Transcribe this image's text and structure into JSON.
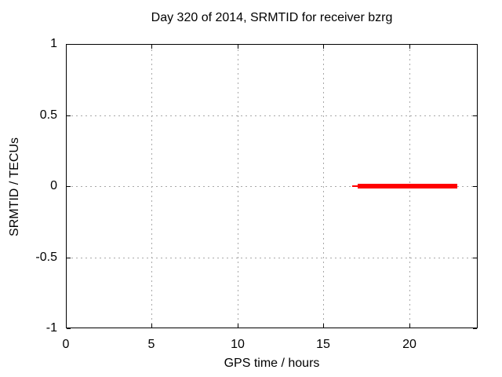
{
  "chart_data": {
    "type": "line",
    "title": "Day 320 of 2014, SRMTID for receiver bzrg",
    "xlabel": "GPS time / hours",
    "ylabel": "SRMTID / TECUs",
    "xlim": [
      0,
      24
    ],
    "ylim": [
      -1,
      1
    ],
    "grid": true,
    "legend": "none",
    "background_color": "#ffffff",
    "border_color": "#000000",
    "grid_color": "#a8a8a8",
    "x_ticks": [
      {
        "v": 0,
        "label": "0"
      },
      {
        "v": 5,
        "label": "5"
      },
      {
        "v": 10,
        "label": "10"
      },
      {
        "v": 15,
        "label": "15"
      },
      {
        "v": 20,
        "label": "20"
      }
    ],
    "y_ticks": [
      {
        "v": 1,
        "label": "1"
      },
      {
        "v": 0.5,
        "label": "0.5"
      },
      {
        "v": 0,
        "label": "0"
      },
      {
        "v": -0.5,
        "label": "-0.5"
      },
      {
        "v": -1,
        "label": "-1"
      }
    ],
    "series": [
      {
        "name": "SRMTID",
        "color": "#ff0000",
        "description": "constant segment at y = 0 from about 16.7 h to 22.8 h GPS time",
        "segments": [
          {
            "x1": 16.7,
            "x2": 17.0,
            "y": 0,
            "weight": "thin"
          },
          {
            "x1": 17.0,
            "x2": 22.8,
            "y": 0,
            "weight": "thick"
          }
        ]
      }
    ]
  }
}
